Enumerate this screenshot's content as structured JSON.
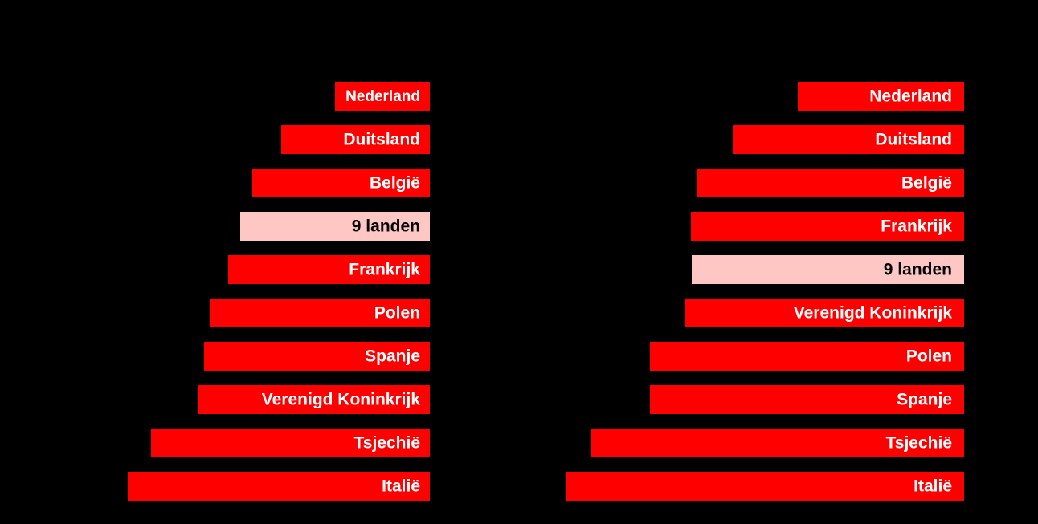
{
  "chart_data": [
    {
      "type": "bar",
      "orientation": "horizontal",
      "categories": [
        "Nederland",
        "Duitsland",
        "België",
        "9 landen",
        "Frankrijk",
        "Polen",
        "Spanje",
        "Verenigd Koninkrijk",
        "Tsjechië",
        "Italië"
      ],
      "values": [
        118,
        185,
        221,
        236,
        251,
        273,
        281,
        288,
        347,
        376
      ],
      "colors": [
        "#ff0000",
        "#ff0000",
        "#ff0000",
        "#ffc7c3",
        "#ff0000",
        "#ff0000",
        "#ff0000",
        "#ff0000",
        "#ff0000",
        "#ff0000"
      ],
      "xlim": [
        0,
        400
      ]
    },
    {
      "type": "bar",
      "orientation": "horizontal",
      "categories": [
        "Nederland",
        "Duitsland",
        "België",
        "Frankrijk",
        "9 landen",
        "Verenigd Koninkrijk",
        "Polen",
        "Spanje",
        "Tsjechië",
        "Italië"
      ],
      "values": [
        207,
        288,
        332,
        340,
        339,
        347,
        391,
        391,
        464,
        495
      ],
      "colors": [
        "#ff0000",
        "#ff0000",
        "#ff0000",
        "#ff0000",
        "#ffc7c3",
        "#ff0000",
        "#ff0000",
        "#ff0000",
        "#ff0000",
        "#ff0000"
      ],
      "xlim": [
        0,
        500
      ]
    }
  ]
}
